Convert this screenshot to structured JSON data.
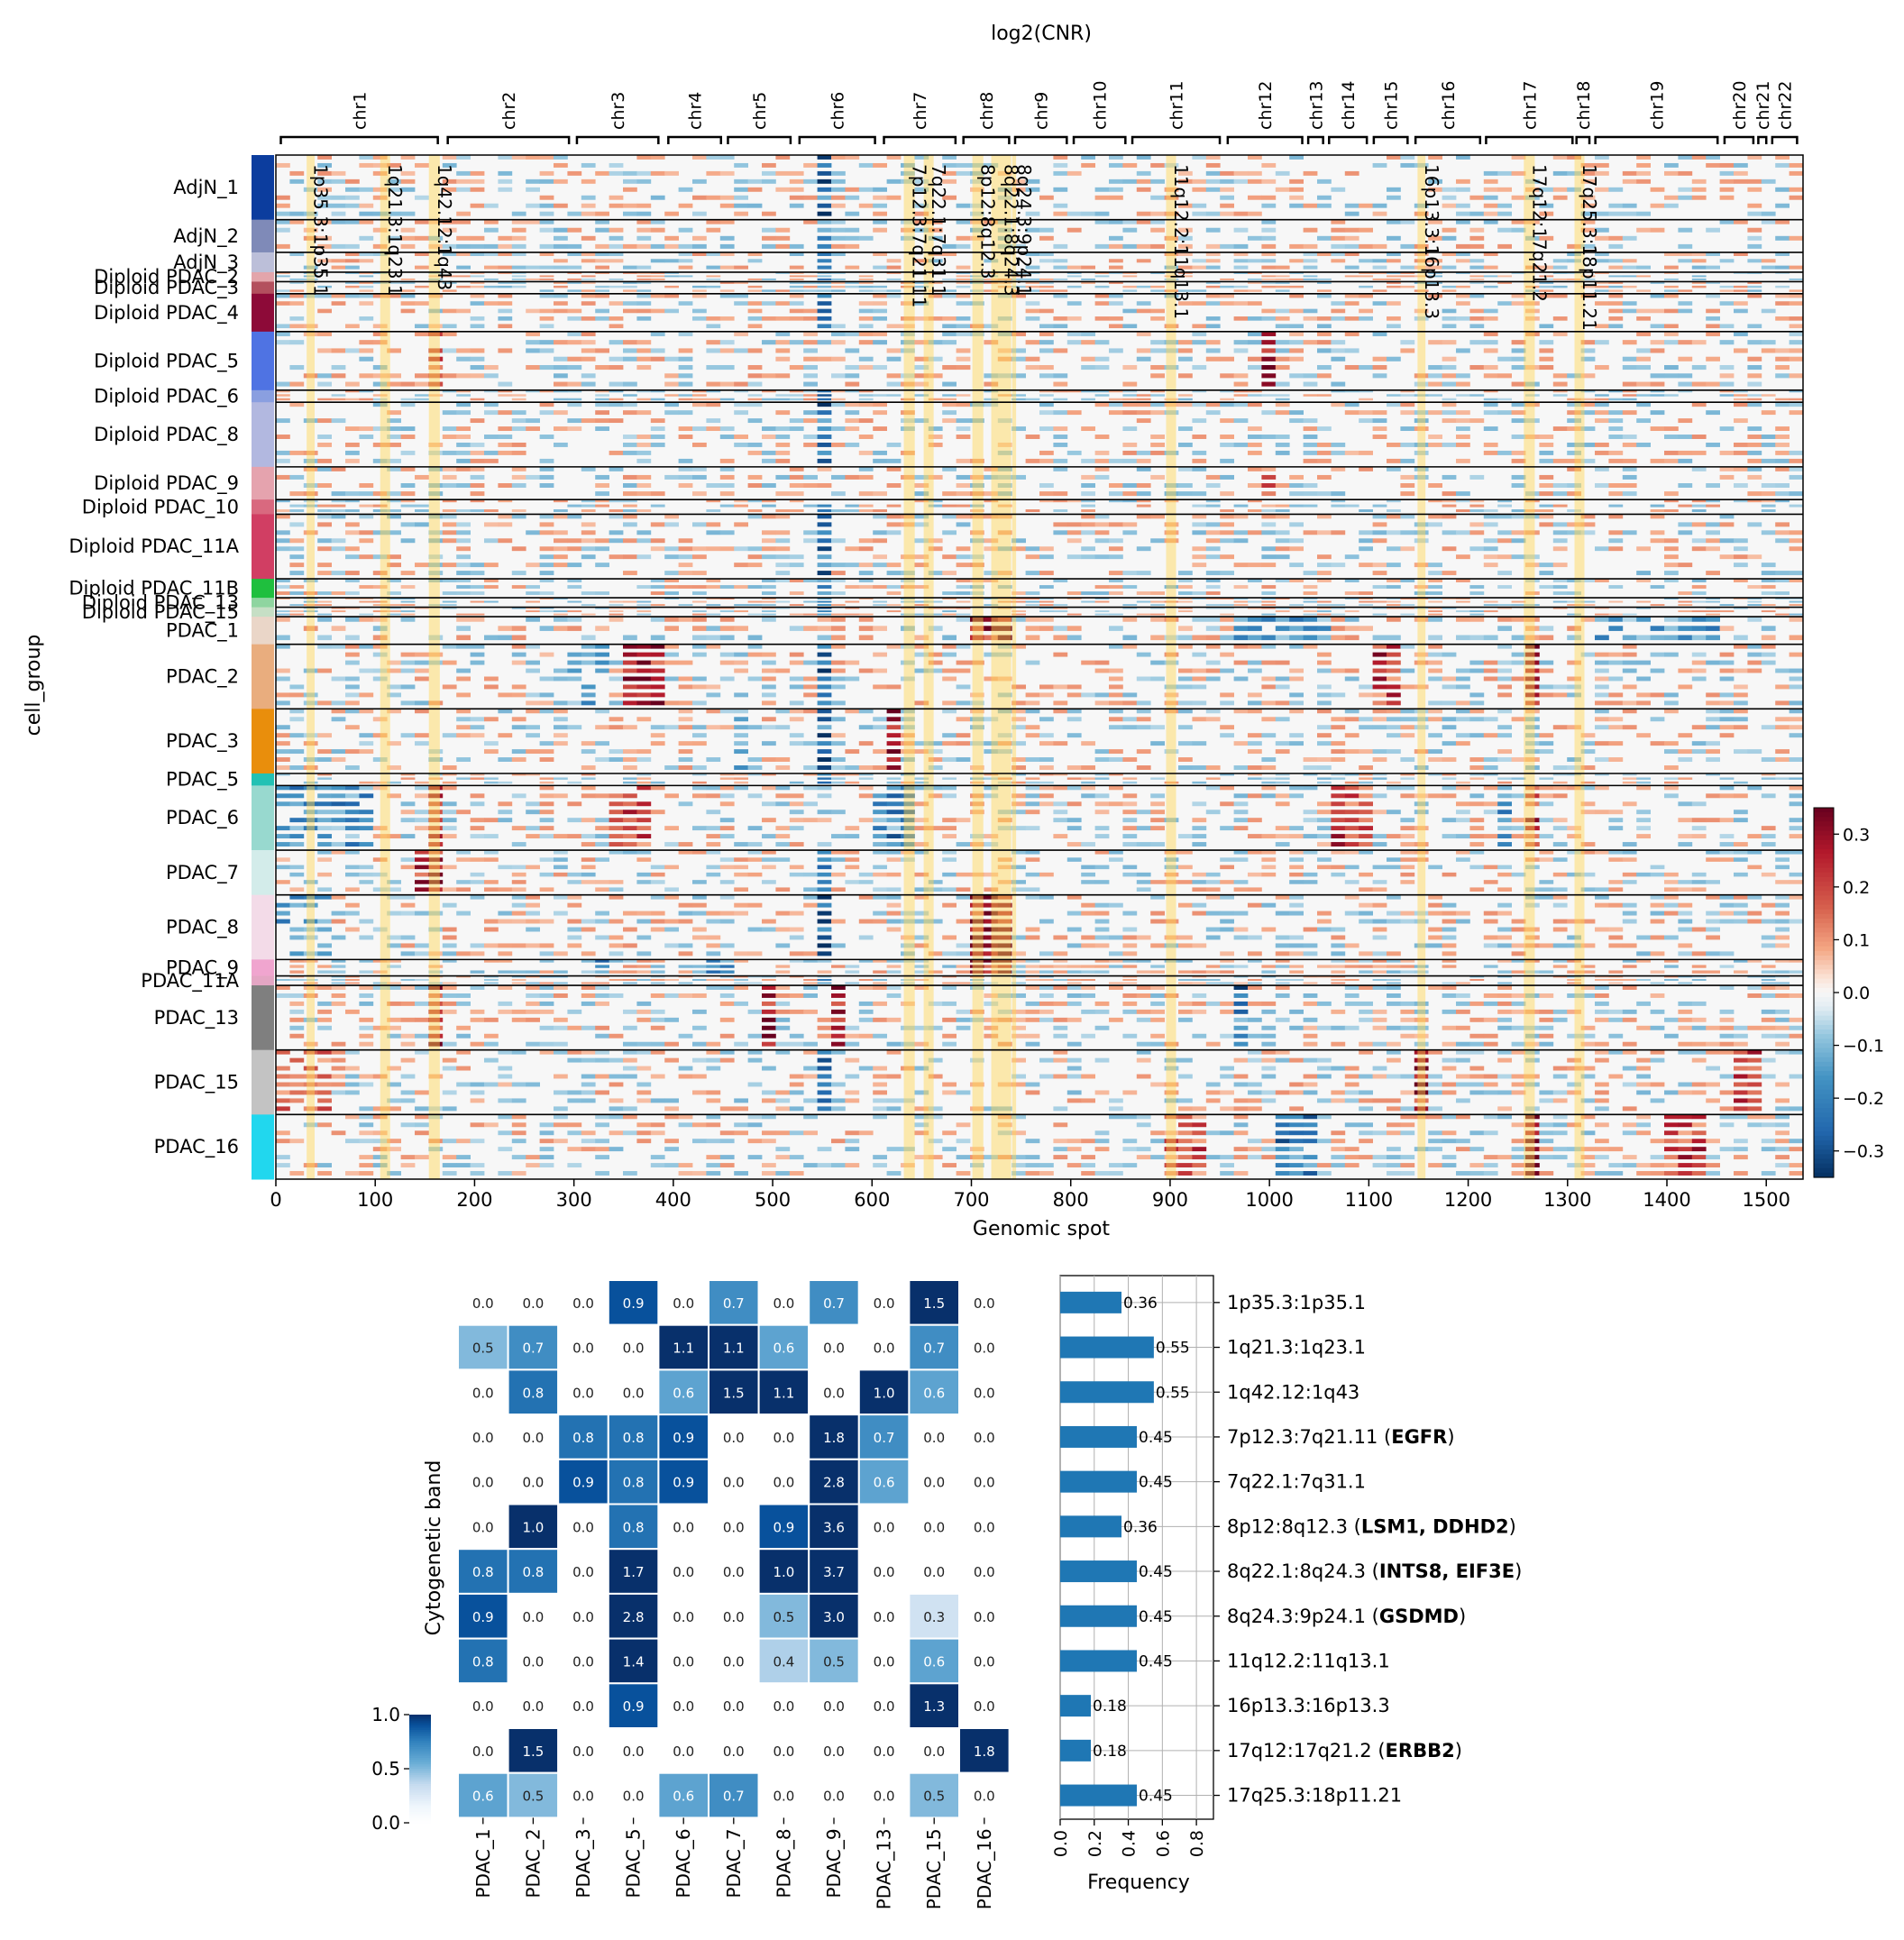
{
  "figure": {
    "top_title": "log2(CNR)",
    "x_axis_label": "Genomic spot",
    "y_axis_label": "cell_group",
    "bottom_y_label": "Cytogenetic band",
    "freq_x_label": "Frequency"
  },
  "chart_data": [
    {
      "type": "heatmap",
      "title": "log2(CNR)",
      "xlabel": "Genomic spot",
      "ylabel": "cell_group",
      "xlim": [
        0,
        1537
      ],
      "x_ticks": [
        0,
        100,
        200,
        300,
        400,
        500,
        600,
        700,
        800,
        900,
        1000,
        1100,
        1200,
        1300,
        1400,
        1500
      ],
      "chromosomes": [
        {
          "name": "chr1",
          "start": 5,
          "end": 163
        },
        {
          "name": "chr2",
          "start": 173,
          "end": 295
        },
        {
          "name": "chr3",
          "start": 303,
          "end": 385
        },
        {
          "name": "chr4",
          "start": 395,
          "end": 448
        },
        {
          "name": "chr5",
          "start": 455,
          "end": 518
        },
        {
          "name": "chr6",
          "start": 527,
          "end": 603
        },
        {
          "name": "chr7",
          "start": 612,
          "end": 684
        },
        {
          "name": "chr8",
          "start": 692,
          "end": 738
        },
        {
          "name": "chr9",
          "start": 744,
          "end": 796
        },
        {
          "name": "chr10",
          "start": 803,
          "end": 855
        },
        {
          "name": "chr11",
          "start": 862,
          "end": 950
        },
        {
          "name": "chr12",
          "start": 958,
          "end": 1033
        },
        {
          "name": "chr13",
          "start": 1039,
          "end": 1054
        },
        {
          "name": "chr14",
          "start": 1060,
          "end": 1098
        },
        {
          "name": "chr15",
          "start": 1105,
          "end": 1139
        },
        {
          "name": "chr16",
          "start": 1147,
          "end": 1212
        },
        {
          "name": "chr17",
          "start": 1218,
          "end": 1305
        },
        {
          "name": "chr18",
          "start": 1309,
          "end": 1322
        },
        {
          "name": "chr19",
          "start": 1328,
          "end": 1451
        },
        {
          "name": "chr20",
          "start": 1458,
          "end": 1487
        },
        {
          "name": "chr21",
          "start": 1492,
          "end": 1500
        },
        {
          "name": "chr22",
          "start": 1506,
          "end": 1531
        }
      ],
      "highlight_bands": [
        {
          "label": "1p35.3:1p35.1",
          "start": 31,
          "end": 39
        },
        {
          "label": "1q21.3:1q23.1",
          "start": 105,
          "end": 115
        },
        {
          "label": "1q42.12:1q43",
          "start": 154,
          "end": 165
        },
        {
          "label": "7p12.3:7q21.11",
          "start": 632,
          "end": 643
        },
        {
          "label": "7q22.1:7q31.1",
          "start": 652,
          "end": 662
        },
        {
          "label": "8p12:8q12.3",
          "start": 701,
          "end": 712
        },
        {
          "label": "8q22.1:8q24.3",
          "start": 720,
          "end": 740
        },
        {
          "label": "8q24.3:9p24.1",
          "start": 741,
          "end": 745
        },
        {
          "label": "11q12.2:11q13.1",
          "start": 896,
          "end": 906
        },
        {
          "label": "16p13.3:16p13.3",
          "start": 1149,
          "end": 1157
        },
        {
          "label": "17q12:17q21.2",
          "start": 1256,
          "end": 1267
        },
        {
          "label": "17q25.3:18p11.21",
          "start": 1307,
          "end": 1317
        }
      ],
      "colorbar": {
        "ticks": [
          0.3,
          0.2,
          0.1,
          0.0,
          -0.1,
          -0.2,
          -0.3
        ],
        "tick_labels": [
          "0.3",
          "0.2",
          "0.1",
          "0.0",
          "−0.1",
          "−0.2",
          "−0.3"
        ],
        "range": [
          -0.35,
          0.35
        ],
        "colormap": "RdBu_r"
      },
      "row_groups": [
        {
          "name": "AdjN_1",
          "rows": 75,
          "color": "#0c3d9e"
        },
        {
          "name": "AdjN_2",
          "rows": 38,
          "color": "#7f8ab8"
        },
        {
          "name": "AdjN_3",
          "rows": 23,
          "color": "#bcbfd9"
        },
        {
          "name": "Diploid PDAC_2",
          "rows": 11,
          "color": "#e3a5ab"
        },
        {
          "name": "Diploid PDAC_3",
          "rows": 14,
          "color": "#b3505e"
        },
        {
          "name": "Diploid PDAC_4",
          "rows": 44,
          "color": "#8d0a38"
        },
        {
          "name": "Diploid PDAC_5",
          "rows": 68,
          "color": "#4f73e3"
        },
        {
          "name": "Diploid PDAC_6",
          "rows": 14,
          "color": "#8a9fe0"
        },
        {
          "name": "Diploid PDAC_8",
          "rows": 75,
          "color": "#b2b8e0"
        },
        {
          "name": "Diploid PDAC_9",
          "rows": 38,
          "color": "#e5a3ae"
        },
        {
          "name": "Diploid PDAC_10",
          "rows": 17,
          "color": "#d9697f"
        },
        {
          "name": "Diploid PDAC_11A",
          "rows": 75,
          "color": "#d13e63"
        },
        {
          "name": "Diploid PDAC_11B",
          "rows": 22,
          "color": "#1fbf3e"
        },
        {
          "name": "Diploid PDAC_13",
          "rows": 11,
          "color": "#8fd5a0"
        },
        {
          "name": "Diploid PDAC_15",
          "rows": 11,
          "color": "#c6dfc5"
        },
        {
          "name": "PDAC_1",
          "rows": 32,
          "color": "#ead6c8"
        },
        {
          "name": "PDAC_2",
          "rows": 75,
          "color": "#e9ad7e"
        },
        {
          "name": "PDAC_3",
          "rows": 75,
          "color": "#e98e0c"
        },
        {
          "name": "PDAC_5",
          "rows": 14,
          "color": "#23c1b4"
        },
        {
          "name": "PDAC_6",
          "rows": 75,
          "color": "#98d9cf"
        },
        {
          "name": "PDAC_7",
          "rows": 52,
          "color": "#d3ecea"
        },
        {
          "name": "PDAC_8",
          "rows": 75,
          "color": "#f3dbe8"
        },
        {
          "name": "PDAC_9",
          "rows": 19,
          "color": "#f0a5cf"
        },
        {
          "name": "PDAC_11A",
          "rows": 11,
          "color": "#e4a6c4"
        },
        {
          "name": "PDAC_13",
          "rows": 75,
          "color": "#7f7f7f"
        },
        {
          "name": "PDAC_15",
          "rows": 75,
          "color": "#c3c3c3"
        },
        {
          "name": "PDAC_16",
          "rows": 75,
          "color": "#21d7ee"
        }
      ]
    },
    {
      "type": "heatmap",
      "ylabel": "Cytogenetic band",
      "columns": [
        "PDAC_1",
        "PDAC_2",
        "PDAC_3",
        "PDAC_5",
        "PDAC_6",
        "PDAC_7",
        "PDAC_8",
        "PDAC_9",
        "PDAC_13",
        "PDAC_15",
        "PDAC_16"
      ],
      "rows": [
        {
          "band": "1p35.3:1p35.1",
          "genes": [],
          "values": [
            0.0,
            0.0,
            0.0,
            0.9,
            0.0,
            0.7,
            0.0,
            0.7,
            0.0,
            1.5,
            0.0
          ]
        },
        {
          "band": "1q21.3:1q23.1",
          "genes": [],
          "values": [
            0.5,
            0.7,
            0.0,
            0.0,
            1.1,
            1.1,
            0.6,
            0.0,
            0.0,
            0.7,
            0.0
          ]
        },
        {
          "band": "1q42.12:1q43",
          "genes": [],
          "values": [
            0.0,
            0.8,
            0.0,
            0.0,
            0.6,
            1.5,
            1.1,
            0.0,
            1.0,
            0.6,
            0.0
          ]
        },
        {
          "band": "7p12.3:7q21.11",
          "genes": [
            "EGFR"
          ],
          "values": [
            0.0,
            0.0,
            0.8,
            0.8,
            0.9,
            0.0,
            0.0,
            1.8,
            0.7,
            0.0,
            0.0
          ]
        },
        {
          "band": "7q22.1:7q31.1",
          "genes": [],
          "values": [
            0.0,
            0.0,
            0.9,
            0.8,
            0.9,
            0.0,
            0.0,
            2.8,
            0.6,
            0.0,
            0.0
          ]
        },
        {
          "band": "8p12:8q12.3",
          "genes": [
            "LSM1",
            "DDHD2"
          ],
          "values": [
            0.0,
            1.0,
            0.0,
            0.8,
            0.0,
            0.0,
            0.9,
            3.6,
            0.0,
            0.0,
            0.0
          ]
        },
        {
          "band": "8q22.1:8q24.3",
          "genes": [
            "INTS8",
            "EIF3E"
          ],
          "values": [
            0.8,
            0.8,
            0.0,
            1.7,
            0.0,
            0.0,
            1.0,
            3.7,
            0.0,
            0.0,
            0.0
          ]
        },
        {
          "band": "8q24.3:9p24.1",
          "genes": [
            "GSDMD"
          ],
          "values": [
            0.9,
            0.0,
            0.0,
            2.8,
            0.0,
            0.0,
            0.5,
            3.0,
            0.0,
            0.3,
            0.0
          ]
        },
        {
          "band": "11q12.2:11q13.1",
          "genes": [],
          "values": [
            0.8,
            0.0,
            0.0,
            1.4,
            0.0,
            0.0,
            0.4,
            0.5,
            0.0,
            0.6,
            0.0
          ]
        },
        {
          "band": "16p13.3:16p13.3",
          "genes": [],
          "values": [
            0.0,
            0.0,
            0.0,
            0.9,
            0.0,
            0.0,
            0.0,
            0.0,
            0.0,
            1.3,
            0.0
          ]
        },
        {
          "band": "17q12:17q21.2",
          "genes": [
            "ERBB2"
          ],
          "values": [
            0.0,
            1.5,
            0.0,
            0.0,
            0.0,
            0.0,
            0.0,
            0.0,
            0.0,
            0.0,
            1.8
          ]
        },
        {
          "band": "17q25.3:18p11.21",
          "genes": [],
          "values": [
            0.6,
            0.5,
            0.0,
            0.0,
            0.6,
            0.7,
            0.0,
            0.0,
            0.0,
            0.5,
            0.0
          ]
        }
      ],
      "colorbar": {
        "ticks": [
          1.0,
          0.5,
          0.0
        ],
        "tick_labels": [
          "1.0",
          "0.5",
          "0.0"
        ],
        "range": [
          0,
          1
        ],
        "colormap": "Blues"
      }
    },
    {
      "type": "bar",
      "orientation": "horizontal",
      "xlabel": "Frequency",
      "xlim": [
        0,
        0.9
      ],
      "x_ticks": [
        0.0,
        0.2,
        0.4,
        0.6,
        0.8
      ],
      "x_tick_labels": [
        "0.0",
        "0.2",
        "0.4",
        "0.6",
        "0.8"
      ],
      "values": [
        0.36,
        0.55,
        0.55,
        0.45,
        0.45,
        0.36,
        0.45,
        0.45,
        0.45,
        0.18,
        0.18,
        0.45
      ],
      "value_labels": [
        "0.36",
        "0.55",
        "0.55",
        "0.45",
        "0.45",
        "0.36",
        "0.45",
        "0.45",
        "0.45",
        "0.18",
        "0.18",
        "0.45"
      ],
      "bar_color": "#1f77b4"
    }
  ]
}
